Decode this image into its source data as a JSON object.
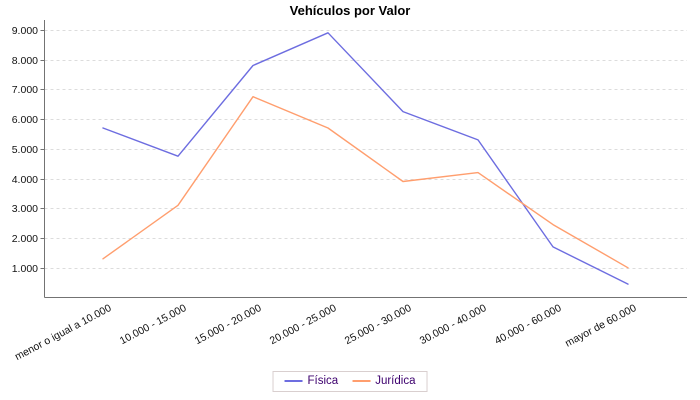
{
  "title": "Vehículos por Valor",
  "chart_data": {
    "type": "line",
    "title": "Vehículos por Valor",
    "categories": [
      "menor o igual a 10.000",
      "10.000 - 15.000",
      "15.000 - 20.000",
      "20.000 - 25.000",
      "25.000 - 30.000",
      "30.000 - 40.000",
      "40.000 - 60.000",
      "mayor de 60.000"
    ],
    "series": [
      {
        "name": "Física",
        "color": "#6d6de0",
        "values": [
          5700,
          4750,
          7800,
          8900,
          6250,
          5300,
          1700,
          450
        ]
      },
      {
        "name": "Jurídica",
        "color": "#ff9e6e",
        "values": [
          1300,
          3100,
          6750,
          5700,
          3900,
          4200,
          2450,
          1000
        ]
      }
    ],
    "xlabel": "",
    "ylabel": "",
    "ylim": [
      0,
      9330
    ],
    "y_ticks": [
      {
        "value": 1000,
        "label": "1.000"
      },
      {
        "value": 2000,
        "label": "2.000"
      },
      {
        "value": 3000,
        "label": "3.000"
      },
      {
        "value": 4000,
        "label": "4.000"
      },
      {
        "value": 5000,
        "label": "5.000"
      },
      {
        "value": 6000,
        "label": "6.000"
      },
      {
        "value": 7000,
        "label": "7.000"
      },
      {
        "value": 8000,
        "label": "8.000"
      },
      {
        "value": 9000,
        "label": "9.000"
      }
    ],
    "grid": "horizontal-dashed",
    "legend_position": "bottom"
  },
  "colors": {
    "background": "#ffffff",
    "gridline": "#dcdcdc",
    "axis": "#737373",
    "tick_label": "#111111",
    "legend_text": "#3d006e",
    "legend_border": "#d9cfcf",
    "series_fisica": "#6d6de0",
    "series_juridica": "#ff9e6e"
  }
}
